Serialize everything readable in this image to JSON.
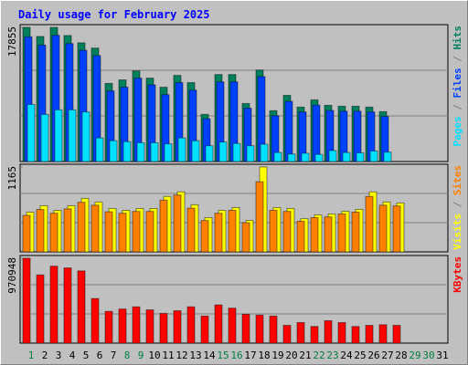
{
  "title": "Daily usage for February 2025",
  "legend_separator": " / ",
  "chart_data": [
    {
      "type": "bar",
      "ylim": [
        0,
        17855
      ],
      "yticks": [
        17855
      ],
      "series": [
        {
          "name": "Hits",
          "color": "#00805c",
          "values": [
            17855,
            16650,
            17855,
            16770,
            15800,
            15100,
            10400,
            10860,
            12060,
            11100,
            9890,
            11460,
            10500,
            6270,
            11580,
            11580,
            7720,
            12180,
            6760,
            8810,
            7240,
            8200,
            7480,
            7360,
            7360,
            7240,
            6640,
            null,
            null,
            null,
            null
          ]
        },
        {
          "name": "Files",
          "color": "#0040ff",
          "values": [
            16600,
            15500,
            16800,
            15700,
            14800,
            14100,
            9400,
            9900,
            11100,
            10200,
            8900,
            10500,
            9500,
            5700,
            10600,
            10600,
            7100,
            11300,
            6100,
            8000,
            6600,
            7500,
            6800,
            6700,
            6700,
            6600,
            6000,
            null,
            null,
            null,
            null
          ]
        },
        {
          "name": "Pages",
          "color": "#00e0ff",
          "values": [
            7600,
            6270,
            6880,
            6880,
            6600,
            3140,
            2770,
            2650,
            2500,
            2500,
            2350,
            3140,
            2770,
            2100,
            2600,
            2400,
            2100,
            2300,
            1200,
            1000,
            1100,
            950,
            1450,
            1200,
            1150,
            1400,
            1250,
            null,
            null,
            null,
            null
          ]
        }
      ]
    },
    {
      "type": "bar",
      "ylim": [
        0,
        1165
      ],
      "yticks": [
        1165
      ],
      "series": [
        {
          "name": "Visits",
          "color": "#ffff00",
          "values": [
            545,
            633,
            570,
            633,
            734,
            684,
            595,
            570,
            595,
            595,
            760,
            823,
            646,
            469,
            570,
            608,
            431,
            1165,
            608,
            595,
            456,
            507,
            519,
            557,
            583,
            823,
            684,
            671,
            null,
            null,
            null
          ]
        },
        {
          "name": "Sites",
          "color": "#ff8000",
          "values": [
            500,
            582,
            530,
            590,
            680,
            640,
            550,
            530,
            555,
            555,
            710,
            780,
            600,
            430,
            530,
            570,
            400,
            962,
            570,
            555,
            420,
            470,
            480,
            520,
            545,
            760,
            640,
            630,
            null,
            null,
            null
          ]
        }
      ]
    },
    {
      "type": "bar",
      "ylim": [
        0,
        970948
      ],
      "yticks": [
        970948
      ],
      "categories": [
        "1",
        "2",
        "3",
        "4",
        "5",
        "6",
        "7",
        "8",
        "9",
        "10",
        "11",
        "12",
        "13",
        "14",
        "15",
        "16",
        "17",
        "18",
        "19",
        "20",
        "21",
        "22",
        "23",
        "24",
        "25",
        "26",
        "27",
        "28",
        "29",
        "30",
        "31"
      ],
      "category_colors": [
        "#008040",
        "#000000",
        "#000000",
        "#000000",
        "#000000",
        "#000000",
        "#000000",
        "#008040",
        "#008040",
        "#000000",
        "#000000",
        "#000000",
        "#000000",
        "#000000",
        "#008040",
        "#008040",
        "#000000",
        "#000000",
        "#000000",
        "#000000",
        "#000000",
        "#008040",
        "#008040",
        "#000000",
        "#000000",
        "#000000",
        "#000000",
        "#000000",
        "#008040",
        "#008040",
        "#000000"
      ],
      "series": [
        {
          "name": "KBytes",
          "color": "#ff0000",
          "values": [
            970948,
            780000,
            880000,
            860000,
            826000,
            510000,
            363000,
            390000,
            415000,
            380000,
            340000,
            370000,
            415000,
            309000,
            437000,
            400000,
            330000,
            320000,
            309000,
            203000,
            235000,
            190000,
            256000,
            235000,
            190000,
            203000,
            210000,
            203000,
            null,
            null,
            null
          ]
        }
      ]
    }
  ]
}
